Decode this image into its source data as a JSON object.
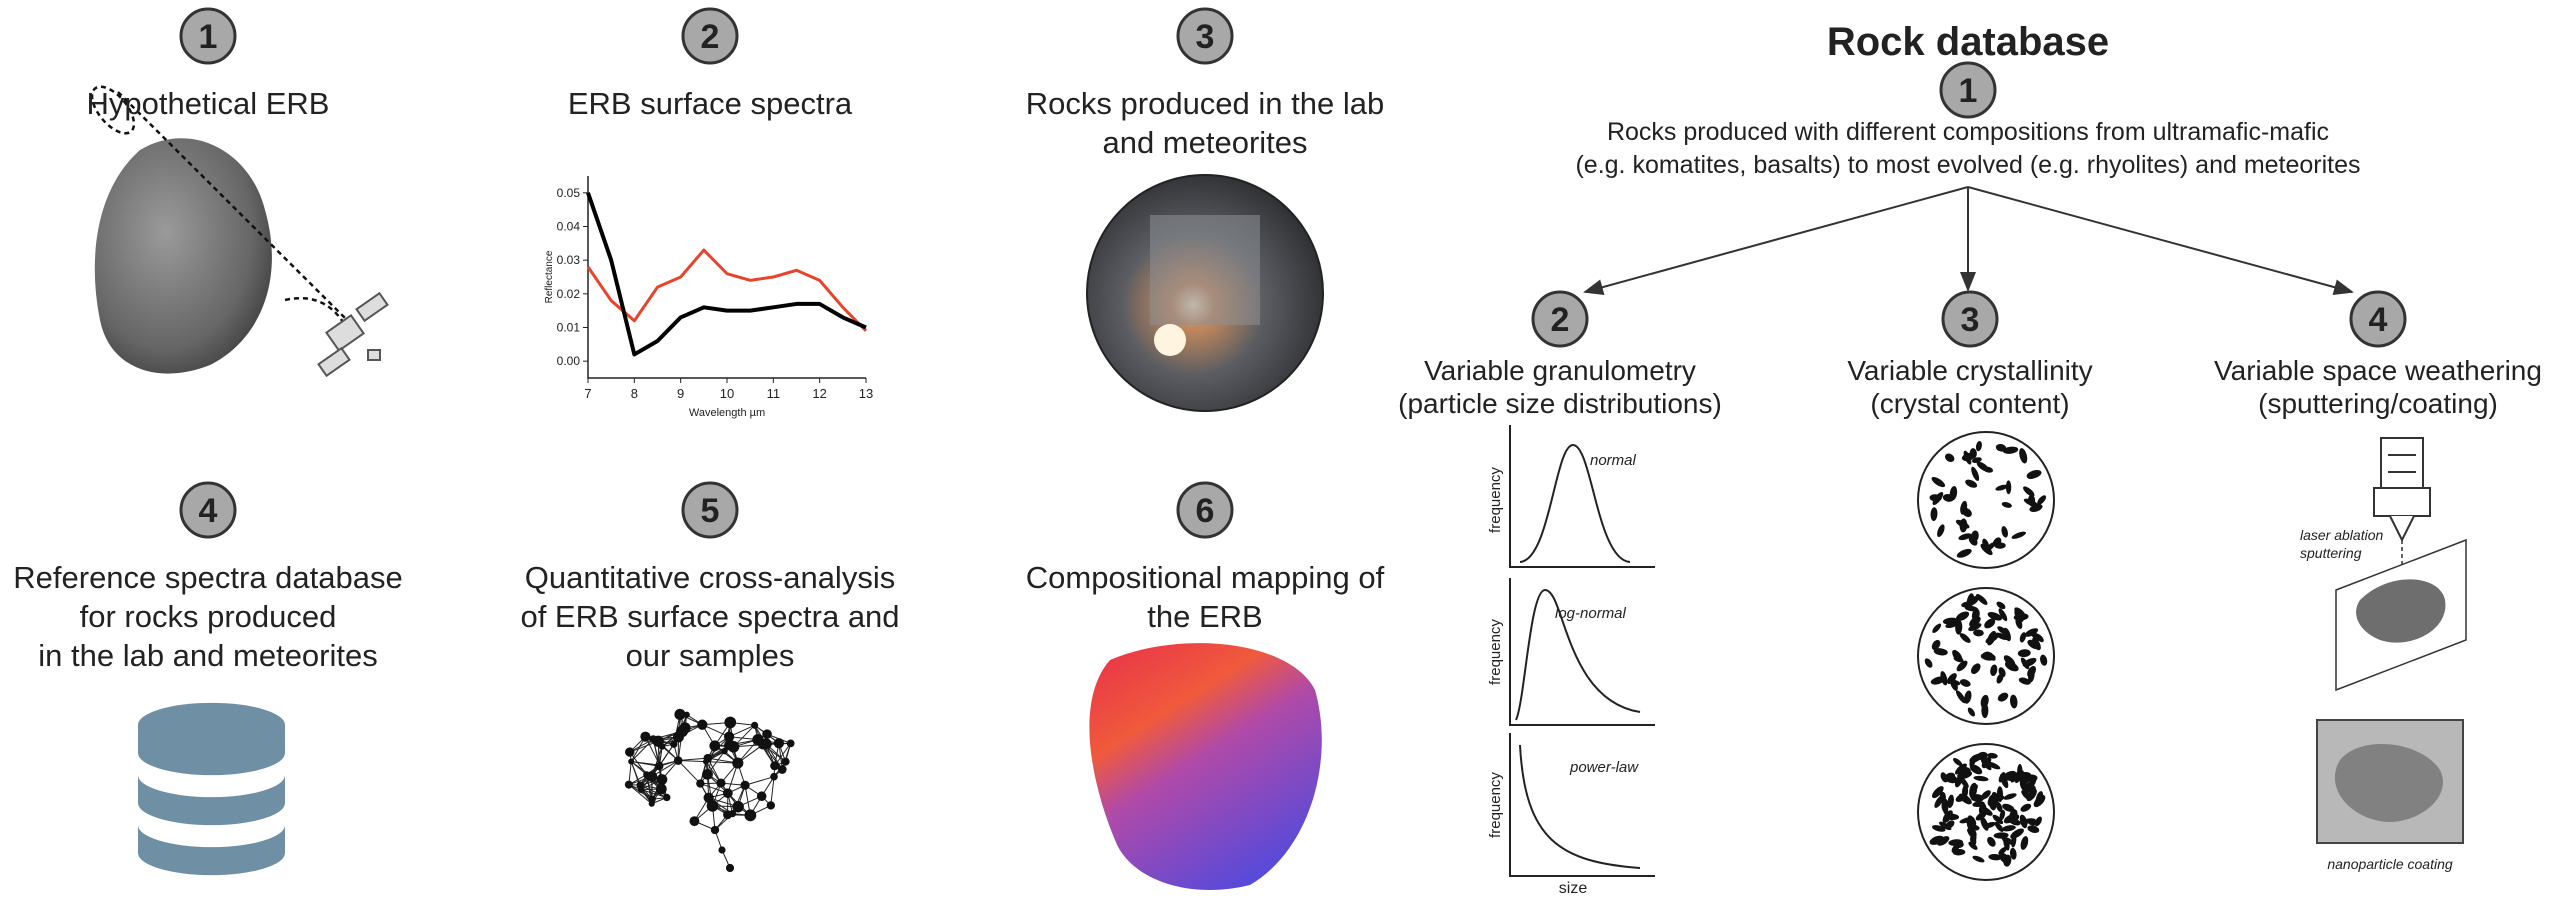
{
  "steps": [
    {
      "number": "1",
      "label_lines": [
        "Hypothetical ERB"
      ]
    },
    {
      "number": "2",
      "label_lines": [
        "ERB surface spectra"
      ]
    },
    {
      "number": "3",
      "label_lines": [
        "Rocks produced in the lab",
        "and meteorites"
      ]
    },
    {
      "number": "4",
      "label_lines": [
        "Reference spectra database",
        "for rocks produced",
        "in the lab and meteorites"
      ]
    },
    {
      "number": "5",
      "label_lines": [
        "Quantitative cross-analysis",
        "of ERB surface spectra and",
        "our samples"
      ]
    },
    {
      "number": "6",
      "label_lines": [
        "Compositional mapping of",
        "the ERB"
      ]
    }
  ],
  "spectra_chart": {
    "type": "line",
    "y_label": "Reflectance",
    "x_label": "Wavelength µm",
    "x": [
      7,
      7.5,
      8,
      8.5,
      9,
      9.5,
      10,
      10.5,
      11,
      11.5,
      12,
      12.5,
      13
    ],
    "series": [
      {
        "color": "#e8442c",
        "values": [
          0.028,
          0.018,
          0.012,
          0.022,
          0.025,
          0.033,
          0.026,
          0.024,
          0.025,
          0.027,
          0.024,
          0.016,
          0.009
        ]
      },
      {
        "color": "#000000",
        "values": [
          0.05,
          0.03,
          0.002,
          0.006,
          0.013,
          0.016,
          0.015,
          0.015,
          0.016,
          0.017,
          0.017,
          0.013,
          0.01
        ]
      }
    ],
    "xlim": [
      7,
      13
    ],
    "xticks": [
      7,
      8,
      9,
      10,
      11,
      12,
      13
    ],
    "ylim": [
      -0.005,
      0.055
    ],
    "yticks": [
      {
        "value": 0,
        "label": "0.00"
      },
      0.01,
      0.02,
      0.03,
      0.04,
      0.05
    ]
  },
  "rock_database": {
    "title": "Rock database",
    "number": "1",
    "description_lines": [
      "Rocks produced with different compositions from ultramafic-mafic",
      "(e.g. komatites, basalts) to most evolved (e.g. rhyolites) and meteorites"
    ],
    "branches": [
      {
        "number": "2",
        "label_lines": [
          "Variable granulometry",
          "(particle size distributions)"
        ]
      },
      {
        "number": "3",
        "label_lines": [
          "Variable crystallinity",
          "(crystal content)"
        ]
      },
      {
        "number": "4",
        "label_lines": [
          "Variable space weathering",
          "(sputtering/coating)"
        ]
      }
    ]
  },
  "granulometry": {
    "distributions": [
      "normal",
      "log-normal",
      "power-law"
    ],
    "y_label": "frequency",
    "x_label": "size"
  },
  "weathering": {
    "sputtering_label_lines": [
      "laser ablation",
      "sputtering"
    ],
    "coating_label": "nanoparticle coating"
  }
}
